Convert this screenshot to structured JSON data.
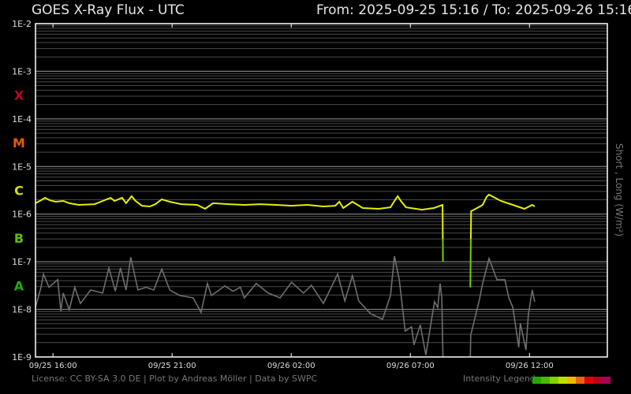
{
  "header": {
    "title": "GOES X-Ray Flux - UTC",
    "from_label": "From:",
    "from": "2025-09-25 15:16",
    "separator": "/",
    "to_label": "To:",
    "to": "2025-09-26 15:16"
  },
  "footer": {
    "credits": "License: CC BY-SA 3.0 DE | Plot by Andreas Möller | Data by SWPC",
    "legend_label": "Intensity Legend",
    "legend_colors": [
      "#22a800",
      "#4cb800",
      "#80d400",
      "#c4dc00",
      "#eebb00",
      "#ea6410",
      "#e00000",
      "#b80020",
      "#a80058"
    ]
  },
  "chart_data": {
    "type": "line",
    "title": "GOES X-Ray Flux - UTC",
    "ylabel": "Short , Long (W/m²)",
    "yscale": "log",
    "ylim": [
      1e-09,
      0.01
    ],
    "xlim": [
      "09/25 15:16",
      "09/26 15:16"
    ],
    "grid": true,
    "y_tick_labels": [
      "1E-2",
      "1E-3",
      "1E-4",
      "1E-5",
      "1E-6",
      "1E-7",
      "1E-8",
      "1E-9"
    ],
    "x_tick_labels": [
      "09/25 16:00",
      "09/25 21:00",
      "09/26 02:00",
      "09/26 07:00",
      "09/26 12:00"
    ],
    "flare_classes": [
      {
        "label": "X",
        "color": "#c00028"
      },
      {
        "label": "M",
        "color": "#e85a00"
      },
      {
        "label": "C",
        "color": "#d4e400"
      },
      {
        "label": "B",
        "color": "#5cc000"
      },
      {
        "label": "A",
        "color": "#1eb000"
      }
    ],
    "series": [
      {
        "name": "Long",
        "color": "#e4f000",
        "low_color": "#74d000",
        "segments": [
          [
            [
              "09/25 15:16",
              1.69e-06
            ],
            [
              "09/25 15:30",
              1.96e-06
            ],
            [
              "09/25 15:40",
              2.2e-06
            ],
            [
              "09/25 15:52",
              1.96e-06
            ],
            [
              "09/25 16:06",
              1.82e-06
            ],
            [
              "09/25 16:26",
              1.89e-06
            ],
            [
              "09/25 16:41",
              1.69e-06
            ],
            [
              "09/25 17:05",
              1.56e-06
            ],
            [
              "09/25 17:45",
              1.62e-06
            ],
            [
              "09/25 18:25",
              2.2e-06
            ],
            [
              "09/25 18:35",
              1.89e-06
            ],
            [
              "09/25 18:54",
              2.2e-06
            ],
            [
              "09/25 19:04",
              1.69e-06
            ],
            [
              "09/25 19:18",
              2.38e-06
            ],
            [
              "09/25 19:28",
              1.89e-06
            ],
            [
              "09/25 19:44",
              1.5e-06
            ],
            [
              "09/25 20:04",
              1.45e-06
            ],
            [
              "09/25 20:18",
              1.62e-06
            ],
            [
              "09/25 20:34",
              2.04e-06
            ],
            [
              "09/25 20:54",
              1.82e-06
            ],
            [
              "09/25 21:23",
              1.62e-06
            ],
            [
              "09/25 22:03",
              1.56e-06
            ],
            [
              "09/25 22:23",
              1.29e-06
            ],
            [
              "09/25 22:43",
              1.69e-06
            ],
            [
              "09/25 23:23",
              1.62e-06
            ],
            [
              "09/26 00:02",
              1.56e-06
            ],
            [
              "09/26 00:42",
              1.62e-06
            ],
            [
              "09/26 01:22",
              1.56e-06
            ],
            [
              "09/26 02:01",
              1.5e-06
            ],
            [
              "09/26 02:41",
              1.56e-06
            ],
            [
              "09/26 03:21",
              1.45e-06
            ],
            [
              "09/26 03:51",
              1.5e-06
            ],
            [
              "09/26 04:01",
              1.82e-06
            ],
            [
              "09/26 04:11",
              1.34e-06
            ],
            [
              "09/26 04:34",
              1.82e-06
            ],
            [
              "09/26 05:00",
              1.34e-06
            ],
            [
              "09/26 05:40",
              1.29e-06
            ],
            [
              "09/26 06:10",
              1.39e-06
            ],
            [
              "09/26 06:20",
              1.89e-06
            ],
            [
              "09/26 06:28",
              2.38e-06
            ],
            [
              "09/26 06:36",
              1.89e-06
            ],
            [
              "09/26 06:49",
              1.39e-06
            ],
            [
              "09/26 07:29",
              1.24e-06
            ],
            [
              "09/26 07:59",
              1.34e-06
            ],
            [
              "09/26 08:21",
              1.56e-06
            ],
            [
              "09/26 08:22",
              1e-07
            ]
          ],
          [
            [
              "09/26 09:31",
              2.9e-08
            ],
            [
              "09/26 09:33",
              1.15e-06
            ],
            [
              "09/26 09:48",
              1.34e-06
            ],
            [
              "09/26 10:02",
              1.56e-06
            ],
            [
              "09/26 10:12",
              2.3e-06
            ],
            [
              "09/26 10:18",
              2.56e-06
            ],
            [
              "09/26 10:48",
              1.89e-06
            ],
            [
              "09/26 11:18",
              1.56e-06
            ],
            [
              "09/26 11:47",
              1.29e-06
            ],
            [
              "09/26 12:07",
              1.56e-06
            ],
            [
              "09/26 12:13",
              1.45e-06
            ]
          ]
        ]
      },
      {
        "name": "Short",
        "color": "#6e6e6e",
        "segments": [
          [
            [
              "09/25 15:16",
              1.1e-08
            ],
            [
              "09/25 15:30",
              2.9e-08
            ],
            [
              "09/25 15:36",
              5.5e-08
            ],
            [
              "09/25 15:50",
              2.9e-08
            ],
            [
              "09/25 16:12",
              4.2e-08
            ],
            [
              "09/25 16:20",
              9.1e-09
            ],
            [
              "09/25 16:26",
              2.2e-08
            ],
            [
              "09/25 16:41",
              9.8e-09
            ],
            [
              "09/25 16:55",
              2.9e-08
            ],
            [
              "09/25 17:09",
              1.33e-08
            ],
            [
              "09/25 17:35",
              2.55e-08
            ],
            [
              "09/25 18:05",
              2.2e-08
            ],
            [
              "09/25 18:21",
              7.4e-08
            ],
            [
              "09/25 18:37",
              2.4e-08
            ],
            [
              "09/25 18:50",
              7.4e-08
            ],
            [
              "09/25 19:04",
              2.55e-08
            ],
            [
              "09/25 19:16",
              1.24e-07
            ],
            [
              "09/25 19:34",
              2.55e-08
            ],
            [
              "09/25 19:54",
              2.9e-08
            ],
            [
              "09/25 20:14",
              2.55e-08
            ],
            [
              "09/25 20:34",
              7e-08
            ],
            [
              "09/25 20:54",
              2.55e-08
            ],
            [
              "09/25 21:19",
              1.95e-08
            ],
            [
              "09/25 21:53",
              1.74e-08
            ],
            [
              "09/25 22:13",
              8.6e-09
            ],
            [
              "09/25 22:29",
              3.5e-08
            ],
            [
              "09/25 22:39",
              1.95e-08
            ],
            [
              "09/25 23:13",
              3.1e-08
            ],
            [
              "09/25 23:33",
              2.4e-08
            ],
            [
              "09/25 23:52",
              2.9e-08
            ],
            [
              "09/26 00:02",
              1.74e-08
            ],
            [
              "09/26 00:32",
              3.5e-08
            ],
            [
              "09/26 01:02",
              2.2e-08
            ],
            [
              "09/26 01:32",
              1.74e-08
            ],
            [
              "09/26 02:01",
              3.7e-08
            ],
            [
              "09/26 02:31",
              2.2e-08
            ],
            [
              "09/26 02:51",
              3.2e-08
            ],
            [
              "09/26 03:21",
              1.33e-08
            ],
            [
              "09/26 03:57",
              5.5e-08
            ],
            [
              "09/26 04:15",
              1.5e-08
            ],
            [
              "09/26 04:34",
              5.1e-08
            ],
            [
              "09/26 04:50",
              1.5e-08
            ],
            [
              "09/26 05:20",
              8.1e-09
            ],
            [
              "09/26 05:50",
              6.2e-09
            ],
            [
              "09/26 06:10",
              1.95e-08
            ],
            [
              "09/26 06:20",
              1.31e-07
            ],
            [
              "09/26 06:32",
              4.2e-08
            ],
            [
              "09/26 06:47",
              3.5e-09
            ],
            [
              "09/26 07:03",
              4.3e-09
            ],
            [
              "09/26 07:09",
              1.8e-09
            ],
            [
              "09/26 07:25",
              4.7e-09
            ],
            [
              "09/26 07:39",
              1.1e-09
            ],
            [
              "09/26 07:55",
              7.5e-09
            ],
            [
              "09/26 08:01",
              1.44e-08
            ],
            [
              "09/26 08:09",
              1.1e-08
            ],
            [
              "09/26 08:15",
              3.5e-08
            ],
            [
              "09/26 08:19",
              1.74e-08
            ],
            [
              "09/26 08:22",
              1e-09
            ]
          ],
          [
            [
              "09/26 09:31",
              1e-09
            ],
            [
              "09/26 09:32",
              2.9e-09
            ],
            [
              "09/26 09:42",
              6.2e-09
            ],
            [
              "09/26 09:54",
              1.62e-08
            ],
            [
              "09/26 10:02",
              3.5e-08
            ],
            [
              "09/26 10:18",
              1.17e-07
            ],
            [
              "09/26 10:38",
              4.2e-08
            ],
            [
              "09/26 10:58",
              4.2e-08
            ],
            [
              "09/26 11:08",
              1.74e-08
            ],
            [
              "09/26 11:18",
              1.1e-08
            ],
            [
              "09/26 11:33",
              1.6e-09
            ],
            [
              "09/26 11:37",
              5.1e-09
            ],
            [
              "09/26 11:51",
              1.4e-09
            ],
            [
              "09/26 11:57",
              7.5e-09
            ],
            [
              "09/26 12:07",
              2.55e-08
            ],
            [
              "09/26 12:13",
              1.44e-08
            ]
          ]
        ]
      }
    ]
  }
}
